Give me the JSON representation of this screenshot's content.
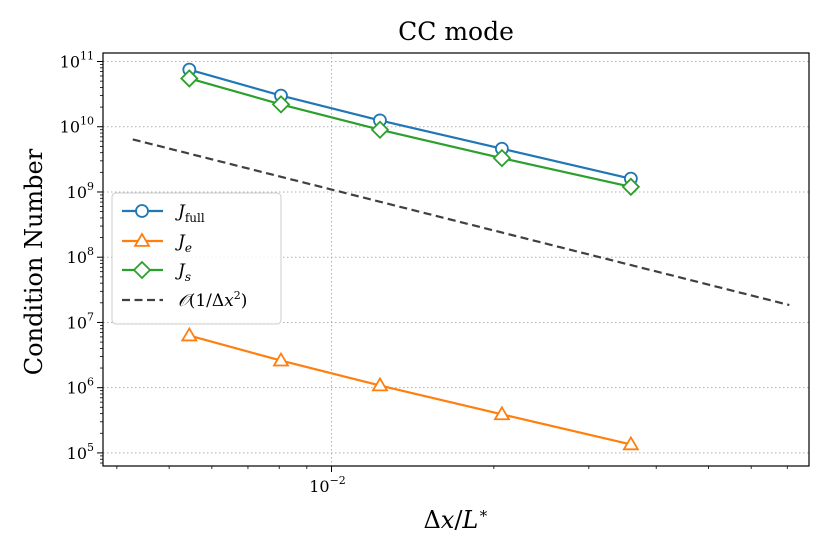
{
  "chart_data": {
    "type": "line",
    "title": "CC mode",
    "xlabel": "Δx/L*",
    "ylabel": "Condition Number",
    "xscale": "log",
    "yscale": "log",
    "xlim": [
      0.00377,
      0.0768
    ],
    "ylim": [
      63000,
      135000000000
    ],
    "x_tick_labels": [
      {
        "base": "10",
        "exp": "−2",
        "value": 0.01
      }
    ],
    "y_tick_labels": [
      {
        "base": "10",
        "exp": "5",
        "value": 100000
      },
      {
        "base": "10",
        "exp": "6",
        "value": 1000000
      },
      {
        "base": "10",
        "exp": "7",
        "value": 10000000
      },
      {
        "base": "10",
        "exp": "8",
        "value": 100000000
      },
      {
        "base": "10",
        "exp": "9",
        "value": 1000000000
      },
      {
        "base": "10",
        "exp": "10",
        "value": 10000000000
      },
      {
        "base": "10",
        "exp": "11",
        "value": 100000000000
      }
    ],
    "grid": true,
    "legend_position": "center-left",
    "series": [
      {
        "name": "J_full",
        "color": "#1f77b4",
        "marker": "circle",
        "dash": "solid",
        "x": [
          0.00545,
          0.00806,
          0.0123,
          0.0207,
          0.0359
        ],
        "y": [
          75000000000,
          30000000000,
          12500000000,
          4600000000,
          1600000000
        ]
      },
      {
        "name": "J_e",
        "color": "#ff7f0e",
        "marker": "triangle",
        "dash": "solid",
        "x": [
          0.00545,
          0.00806,
          0.0123,
          0.0207,
          0.0359
        ],
        "y": [
          6300000,
          2600000,
          1080000,
          390000,
          135000
        ]
      },
      {
        "name": "J_s",
        "color": "#2ca02c",
        "marker": "diamond",
        "dash": "solid",
        "x": [
          0.00545,
          0.00806,
          0.0123,
          0.0207,
          0.0359
        ],
        "y": [
          55000000000,
          22000000000,
          9000000000,
          3300000000,
          1200000000
        ]
      },
      {
        "name": "O(1/Δx²)",
        "color": "#404040",
        "marker": "none",
        "dash": "dashed",
        "x": [
          0.00428,
          0.0706
        ],
        "y": [
          6400000000,
          18500000
        ]
      }
    ]
  }
}
